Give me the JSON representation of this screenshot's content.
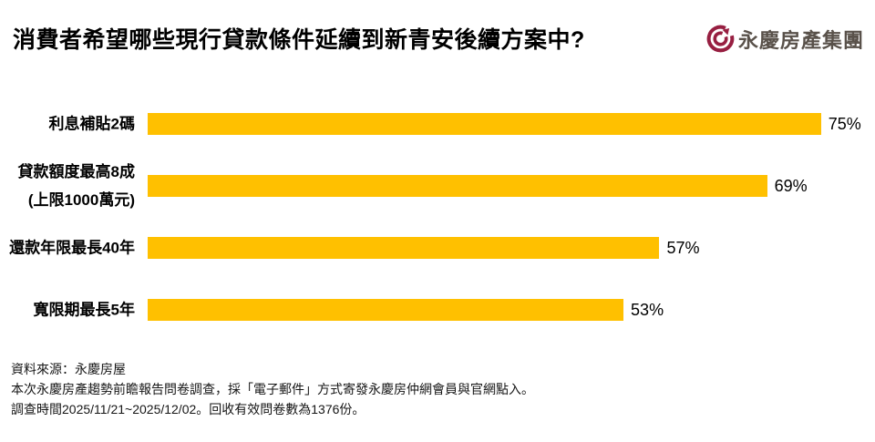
{
  "header": {
    "title": "消費者希望哪些現行貸款條件延續到新青安後續方案中?",
    "logo": {
      "icon": "yungching-circle-mark",
      "text": "永慶房產集團",
      "icon_color": "#971f41",
      "text_color": "#59514a"
    }
  },
  "chart_data": {
    "type": "bar",
    "orientation": "horizontal",
    "title": "消費者希望哪些現行貸款條件延續到新青安後續方案中?",
    "categories": [
      "利息補貼2碼",
      "貸款額度最高8成 (上限1000萬元)",
      "還款年限最長40年",
      "寬限期最長5年"
    ],
    "values": [
      75,
      69,
      57,
      53
    ],
    "value_labels": [
      "75%",
      "69%",
      "57%",
      "53%"
    ],
    "unit": "%",
    "xlim": [
      0,
      80
    ],
    "grid": false,
    "legend": false,
    "bar_color": "#FFC000",
    "rows": [
      {
        "label_lines": [
          "利息補貼2碼"
        ],
        "value": 75,
        "value_label": "75%"
      },
      {
        "label_lines": [
          "貸款額度最高8成",
          "(上限1000萬元)"
        ],
        "value": 69,
        "value_label": "69%"
      },
      {
        "label_lines": [
          "還款年限最長40年"
        ],
        "value": 57,
        "value_label": "57%"
      },
      {
        "label_lines": [
          "寬限期最長5年"
        ],
        "value": 53,
        "value_label": "53%"
      }
    ]
  },
  "footer": {
    "line1": "資料來源：永慶房屋",
    "line2": "本次永慶房產趨勢前瞻報告問卷調查，採「電子郵件」方式寄發永慶房仲網會員與官網點入。",
    "line3": "調查時間2025/11/21~2025/12/02。回收有效問卷數為1376份。"
  }
}
